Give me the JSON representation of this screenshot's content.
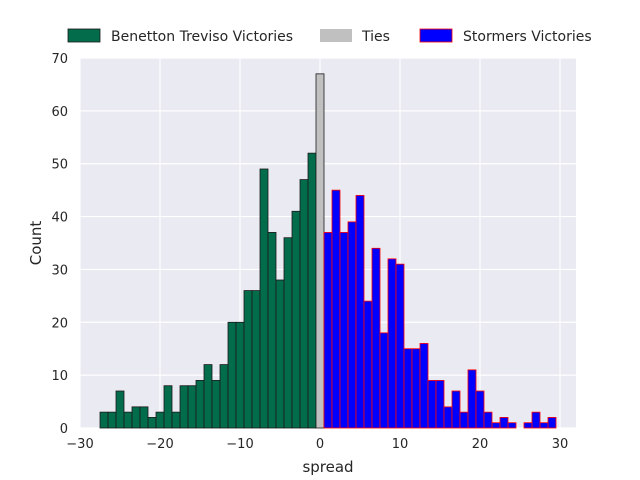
{
  "chart_data": {
    "type": "bar",
    "xlabel": "spread",
    "ylabel": "Count",
    "xlim": [
      -30,
      32
    ],
    "ylim": [
      0,
      70
    ],
    "xticks": [
      -30,
      -20,
      -10,
      0,
      10,
      20,
      30
    ],
    "yticks": [
      0,
      10,
      20,
      30,
      40,
      50,
      60,
      70
    ],
    "xtick_labels": [
      "−30",
      "−20",
      "−10",
      "0",
      "10",
      "20",
      "30"
    ],
    "ytick_labels": [
      "0",
      "10",
      "20",
      "30",
      "40",
      "50",
      "60",
      "70"
    ],
    "grid": true,
    "legend_position": "top",
    "bin_width": 1,
    "series": [
      {
        "name": "Benetton Treviso Victories",
        "color": "#036c4b",
        "edge_color": "#1a1a1a",
        "x": [
          -27,
          -26,
          -25,
          -24,
          -23,
          -22,
          -21,
          -20,
          -19,
          -18,
          -17,
          -16,
          -15,
          -14,
          -13,
          -12,
          -11,
          -10,
          -9,
          -8,
          -7,
          -6,
          -5,
          -4,
          -3,
          -2,
          -1
        ],
        "values": [
          3,
          3,
          7,
          3,
          4,
          4,
          2,
          3,
          8,
          3,
          8,
          8,
          9,
          12,
          9,
          12,
          20,
          20,
          26,
          26,
          49,
          37,
          28,
          36,
          41,
          47,
          52
        ]
      },
      {
        "name": "Ties",
        "color": "#c0c0c0",
        "edge_color": "#1a1a1a",
        "x": [
          0
        ],
        "values": [
          67
        ]
      },
      {
        "name": "Stormers Victories",
        "color": "#0000ff",
        "edge_color": "#ff0000",
        "x": [
          1,
          2,
          3,
          4,
          5,
          6,
          7,
          8,
          9,
          10,
          11,
          12,
          13,
          14,
          15,
          16,
          17,
          18,
          19,
          20,
          21,
          22,
          23,
          24,
          25,
          26,
          27,
          28,
          29
        ],
        "values": [
          37,
          45,
          37,
          39,
          44,
          24,
          34,
          18,
          32,
          31,
          15,
          15,
          16,
          9,
          9,
          4,
          7,
          3,
          11,
          7,
          3,
          1,
          2,
          1,
          0,
          1,
          3,
          1,
          2
        ]
      }
    ]
  },
  "colors": {
    "plot_background": "#eaeaf2",
    "grid": "#ffffff",
    "text": "#262626"
  }
}
